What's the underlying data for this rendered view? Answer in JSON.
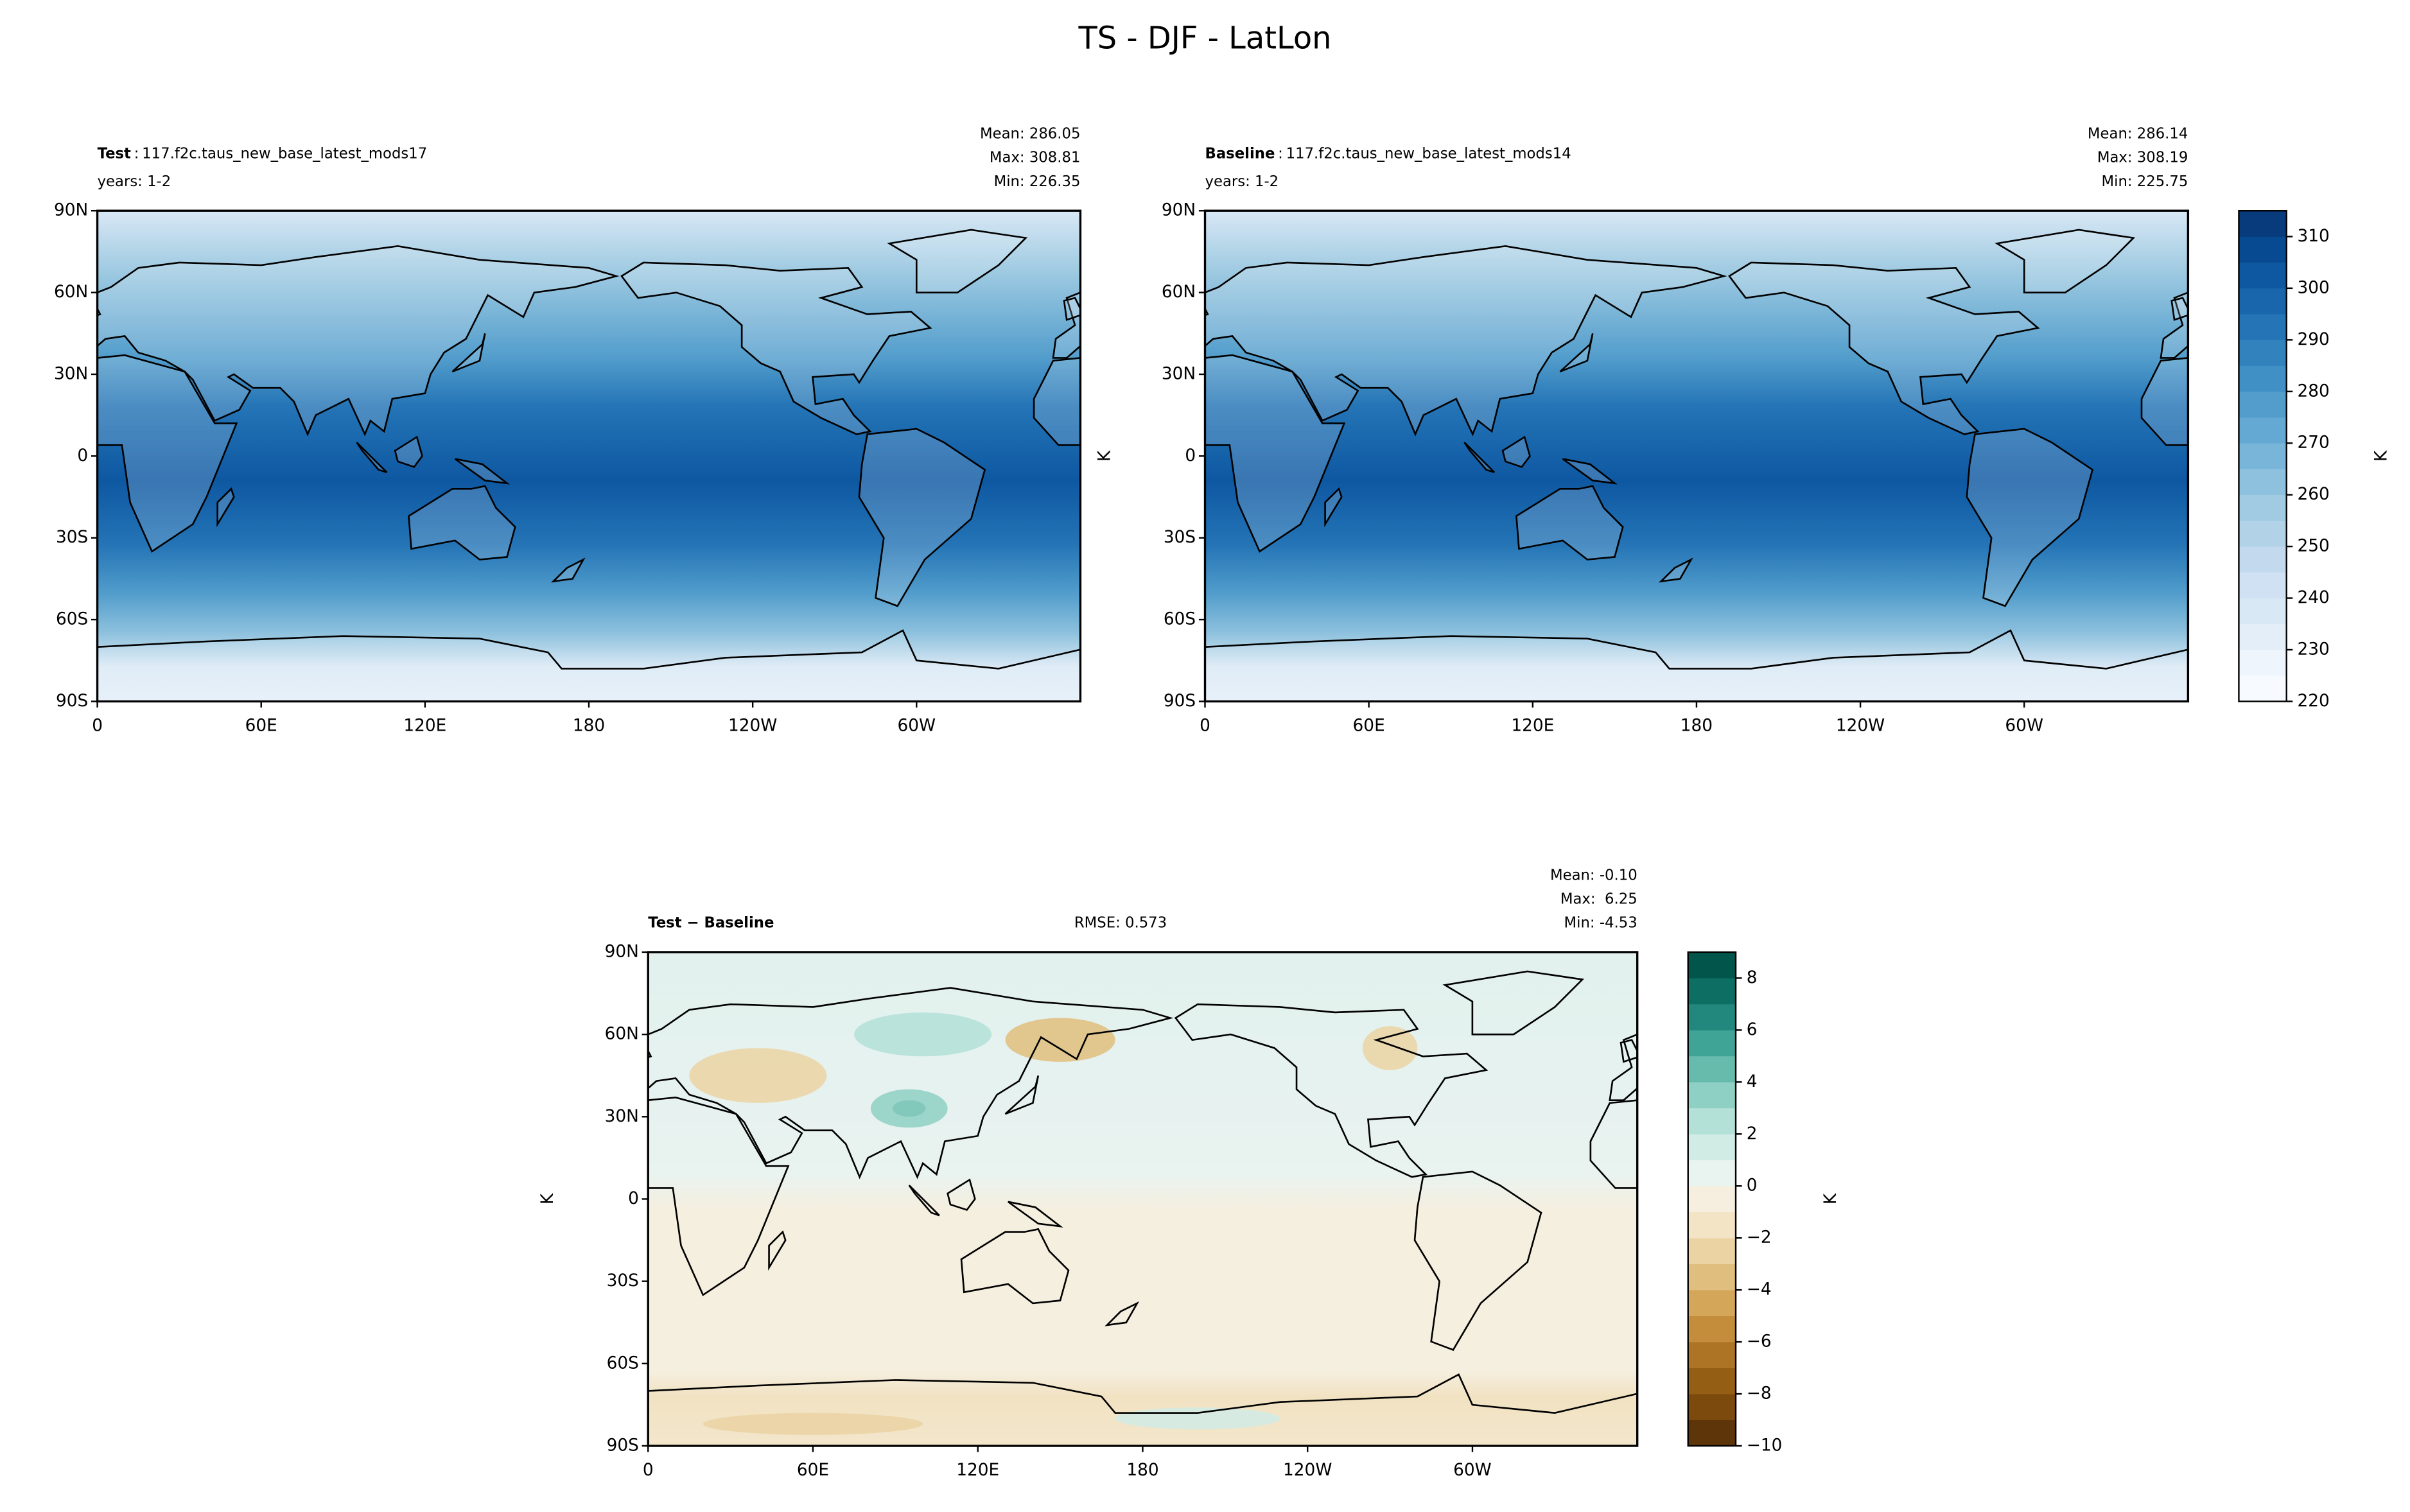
{
  "title": "TS - DJF - LatLon",
  "chart_data": [
    {
      "type": "map",
      "label": "Test",
      "label_sep": ":",
      "run": "117.f2c.taus_new_base_latest_mods17",
      "years": "years: 1-2",
      "stats": [
        "Mean: 286.05",
        "Max: 308.81",
        "Min: 226.35"
      ],
      "xlim": [
        0,
        360
      ],
      "ylim": [
        -90,
        90
      ],
      "xticks": [
        0,
        {
          "value": 60,
          "label": "60E"
        },
        {
          "value": 120,
          "label": "120E"
        },
        180,
        {
          "value": 240,
          "label": "120W"
        },
        {
          "value": 300,
          "label": "60W"
        }
      ],
      "yticks": [
        {
          "value": 90,
          "label": "90N"
        },
        {
          "value": 60,
          "label": "60N"
        },
        {
          "value": 30,
          "label": "30N"
        },
        0,
        {
          "value": -30,
          "label": "30S"
        },
        {
          "value": -60,
          "label": "60S"
        },
        {
          "value": -90,
          "label": "90S"
        }
      ]
    },
    {
      "type": "map",
      "label": "Baseline",
      "label_sep": ":",
      "run": "117.f2c.taus_new_base_latest_mods14",
      "years": "years: 1-2",
      "stats": [
        "Mean: 286.14",
        "Max: 308.19",
        "Min: 225.75"
      ],
      "ylabel": "K",
      "xlim": [
        0,
        360
      ],
      "ylim": [
        -90,
        90
      ],
      "xticks": [
        0,
        {
          "value": 60,
          "label": "60E"
        },
        {
          "value": 120,
          "label": "120E"
        },
        180,
        {
          "value": 240,
          "label": "120W"
        },
        {
          "value": 300,
          "label": "60W"
        }
      ],
      "yticks": [
        {
          "value": 90,
          "label": "90N"
        },
        {
          "value": 60,
          "label": "60N"
        },
        {
          "value": 30,
          "label": "30N"
        },
        0,
        {
          "value": -30,
          "label": "30S"
        },
        {
          "value": -60,
          "label": "60S"
        },
        {
          "value": -90,
          "label": "90S"
        }
      ],
      "colorbar": {
        "label": "K",
        "lim": [
          220,
          315
        ],
        "ticks": [
          220,
          230,
          240,
          250,
          260,
          270,
          280,
          290,
          300,
          310
        ],
        "levels": [
          220,
          225,
          230,
          235,
          240,
          245,
          250,
          255,
          260,
          265,
          270,
          275,
          280,
          285,
          290,
          295,
          300,
          305,
          310,
          315
        ],
        "colors": [
          "#f7fbff",
          "#eef5fc",
          "#e3eef9",
          "#d9e8f5",
          "#cfe1f2",
          "#c2d9ee",
          "#b2d2e8",
          "#a0cbe2",
          "#8dc1dd",
          "#78b5d9",
          "#64a9d3",
          "#529dcc",
          "#4190c5",
          "#3282be",
          "#2474b6",
          "#1966ad",
          "#0e58a2",
          "#084a91",
          "#083b7c"
        ]
      }
    },
    {
      "type": "map",
      "label": "Test − Baseline",
      "rmse": "RMSE: 0.573",
      "stats": [
        "Mean: -0.10",
        "Max:  6.25",
        "Min: -4.53"
      ],
      "ylabel": "K",
      "xlim": [
        0,
        360
      ],
      "ylim": [
        -90,
        90
      ],
      "xticks": [
        0,
        {
          "value": 60,
          "label": "60E"
        },
        {
          "value": 120,
          "label": "120E"
        },
        180,
        {
          "value": 240,
          "label": "120W"
        },
        {
          "value": 300,
          "label": "60W"
        }
      ],
      "yticks": [
        {
          "value": 90,
          "label": "90N"
        },
        {
          "value": 60,
          "label": "60N"
        },
        {
          "value": 30,
          "label": "30N"
        },
        0,
        {
          "value": -30,
          "label": "30S"
        },
        {
          "value": -60,
          "label": "60S"
        },
        {
          "value": -90,
          "label": "90S"
        }
      ],
      "colorbar": {
        "label": "K",
        "lim": [
          -10,
          9
        ],
        "ticks": [
          {
            "value": -10,
            "label": "−10"
          },
          {
            "value": -8,
            "label": "−8"
          },
          {
            "value": -6,
            "label": "−6"
          },
          {
            "value": -4,
            "label": "−4"
          },
          {
            "value": -2,
            "label": "−2"
          },
          0,
          2,
          4,
          6,
          8
        ],
        "levels": [
          -10,
          -9,
          -8,
          -7,
          -6,
          -5,
          -4,
          -3,
          -2,
          -1,
          0,
          1,
          2,
          3,
          4,
          5,
          6,
          7,
          8,
          9
        ],
        "colors": [
          "#5e3508",
          "#7c4a0d",
          "#955e15",
          "#ae7425",
          "#c38d3c",
          "#d3a65a",
          "#e0be7d",
          "#ebd3a3",
          "#f3e4c5",
          "#f6efdf",
          "#e9f3f0",
          "#d1ebe5",
          "#b3e0d7",
          "#8ed0c3",
          "#66bbad",
          "#3fa396",
          "#22887d",
          "#0d6e63",
          "#01554a"
        ]
      }
    }
  ]
}
